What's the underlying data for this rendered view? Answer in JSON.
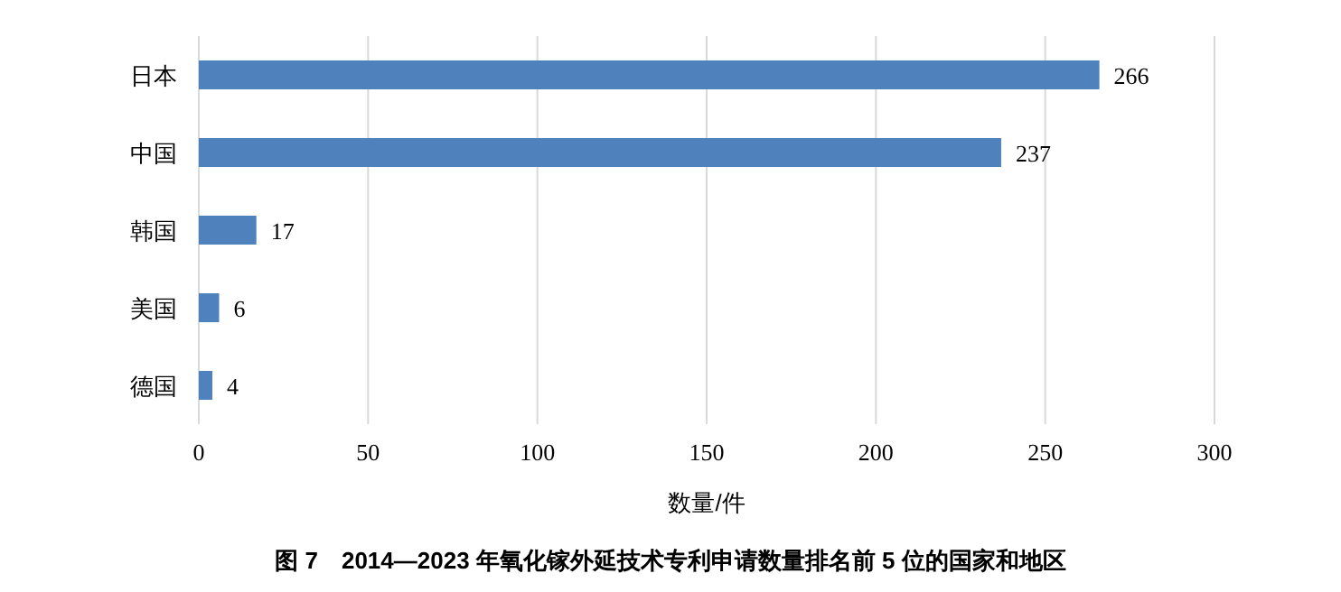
{
  "chart_data": {
    "type": "bar",
    "orientation": "horizontal",
    "title": "图 7　2014—2023 年氧化镓外延技术专利申请数量排名前 5 位的国家和地区",
    "xlabel": "数量/件",
    "categories": [
      "日本",
      "中国",
      "韩国",
      "美国",
      "德国"
    ],
    "series": [
      {
        "color": "#4f81bd",
        "values": [
          266,
          237,
          17,
          6,
          4
        ]
      }
    ],
    "xlim": [
      0,
      300
    ],
    "xticks": [
      0,
      50,
      100,
      150,
      200,
      250,
      300
    ],
    "grid": "x",
    "data_labels": true
  }
}
